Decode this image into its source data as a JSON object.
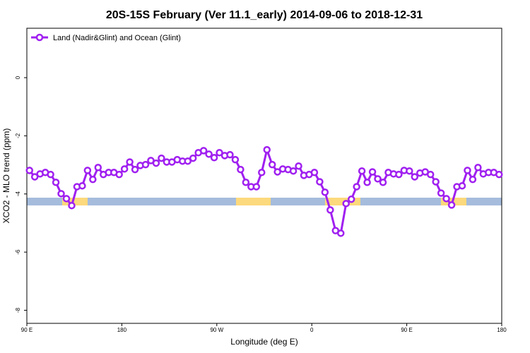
{
  "chart_data": {
    "type": "line",
    "title": "20S-15S February (Ver 11.1_early)   2014-09-06 to 2018-12-31",
    "x_label": "Longitude (deg E)",
    "y_label": "XCO2 - MLO trend (ppm)",
    "xlim": [
      90,
      540
    ],
    "ylim": [
      -8.45,
      1.7
    ],
    "xticks": [
      {
        "value": 90,
        "label": "90 E"
      },
      {
        "value": 180,
        "label": "180"
      },
      {
        "value": 270,
        "label": "90 W"
      },
      {
        "value": 360,
        "label": "0"
      },
      {
        "value": 450,
        "label": "90 E"
      },
      {
        "value": 540,
        "label": "180"
      }
    ],
    "yticks": [
      0,
      -2,
      -4,
      -6,
      -8
    ],
    "legend": "top-left",
    "x": [
      92.5,
      97.5,
      102.5,
      107.5,
      112.5,
      117.5,
      122.5,
      127.5,
      132.5,
      137.5,
      142.5,
      147.5,
      152.5,
      157.5,
      162.5,
      167.5,
      172.5,
      177.5,
      182.5,
      187.5,
      192.5,
      197.5,
      202.5,
      207.5,
      212.5,
      217.5,
      222.5,
      227.5,
      232.5,
      237.5,
      242.5,
      247.5,
      252.5,
      257.5,
      262.5,
      267.5,
      272.5,
      277.5,
      282.5,
      287.5,
      292.5,
      297.5,
      302.5,
      307.5,
      312.5,
      317.5,
      322.5,
      327.5,
      332.5,
      337.5,
      342.5,
      347.5,
      352.5,
      357.5,
      362.5,
      367.5,
      372.5,
      377.5,
      382.5,
      387.5,
      392.5,
      397.5,
      402.5,
      407.5,
      412.5,
      417.5,
      422.5,
      427.5,
      432.5,
      437.5,
      442.5,
      447.5,
      452.5,
      457.5,
      462.5,
      467.5,
      472.5,
      477.5,
      482.5,
      487.5,
      492.5,
      497.5,
      502.5,
      507.5,
      512.5,
      517.5,
      522.5,
      527.5,
      532.5,
      537.5
    ],
    "series": [
      {
        "name": "Land (Nadir&Glint) and Ocean (Glint)",
        "color": "#a020f0",
        "values": [
          -3.19,
          -3.41,
          -3.31,
          -3.26,
          -3.33,
          -3.6,
          -3.99,
          -4.16,
          -4.4,
          -3.75,
          -3.72,
          -3.19,
          -3.5,
          -3.09,
          -3.33,
          -3.26,
          -3.26,
          -3.33,
          -3.14,
          -2.9,
          -3.16,
          -3.02,
          -2.99,
          -2.85,
          -2.94,
          -2.77,
          -2.9,
          -2.9,
          -2.82,
          -2.87,
          -2.87,
          -2.77,
          -2.58,
          -2.51,
          -2.63,
          -2.75,
          -2.58,
          -2.68,
          -2.65,
          -2.82,
          -3.16,
          -3.6,
          -3.75,
          -3.75,
          -3.26,
          -2.48,
          -2.99,
          -3.24,
          -3.14,
          -3.16,
          -3.21,
          -3.04,
          -3.36,
          -3.33,
          -3.26,
          -3.58,
          -3.94,
          -4.55,
          -5.26,
          -5.35,
          -4.33,
          -4.18,
          -3.75,
          -3.21,
          -3.6,
          -3.24,
          -3.48,
          -3.6,
          -3.26,
          -3.31,
          -3.33,
          -3.19,
          -3.21,
          -3.41,
          -3.28,
          -3.24,
          -3.33,
          -3.58,
          -3.97,
          -4.16,
          -4.38,
          -3.75,
          -3.72,
          -3.19,
          -3.5,
          -3.09,
          -3.31,
          -3.26,
          -3.26,
          -3.33
        ]
      }
    ]
  }
}
